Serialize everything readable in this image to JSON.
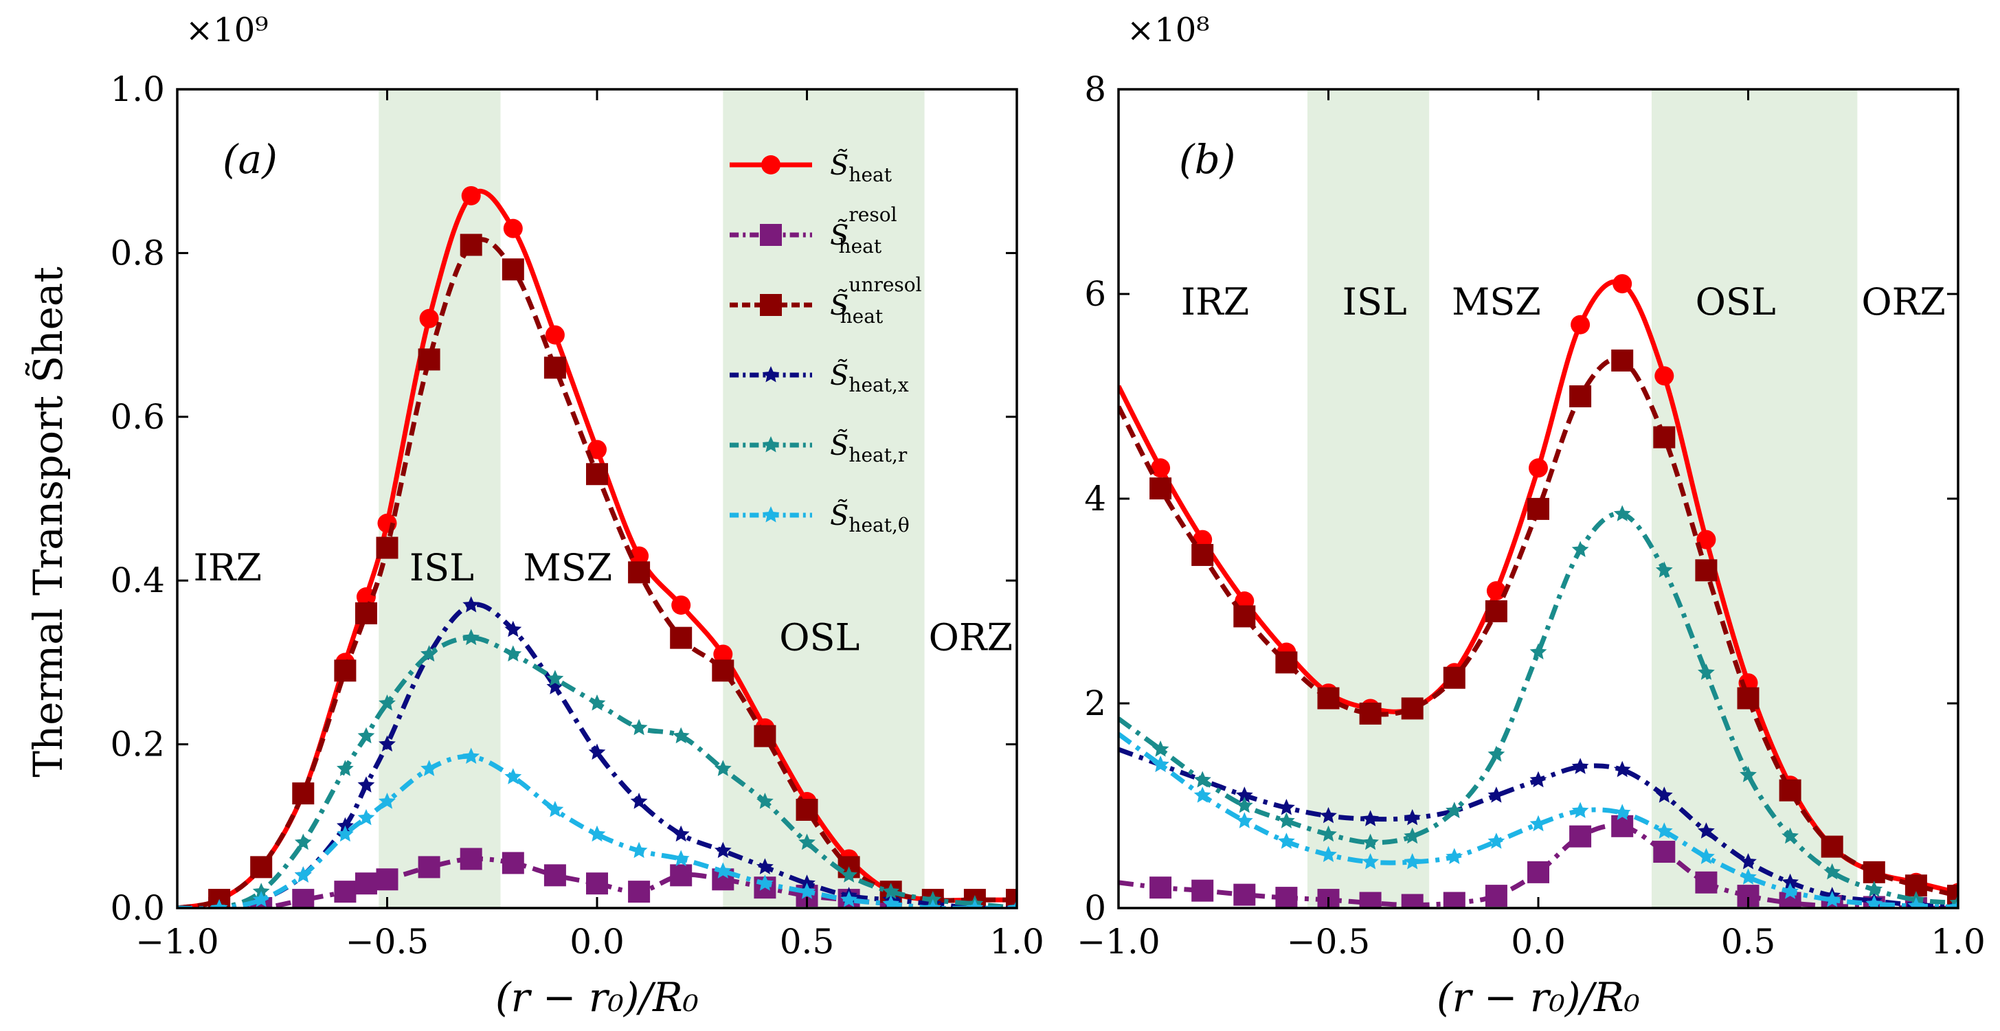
{
  "figure": {
    "ylabel": "Thermal Transport S̃heat"
  },
  "chart_data": [
    {
      "type": "line",
      "panel_label": "(a)",
      "exponent_label": "×10⁹",
      "xlabel": "(r − r₀)/R₀",
      "xlim": [
        -1.0,
        1.0
      ],
      "ylim": [
        0.0,
        1.0
      ],
      "x_ticks": [
        "−1.0",
        "−0.5",
        "0.0",
        "0.5",
        "1.0"
      ],
      "x_tick_values": [
        -1.0,
        -0.5,
        0.0,
        0.5,
        1.0
      ],
      "y_ticks": [
        "0.0",
        "0.2",
        "0.4",
        "0.6",
        "0.8",
        "1.0"
      ],
      "y_tick_values": [
        0.0,
        0.2,
        0.4,
        0.6,
        0.8,
        1.0
      ],
      "shaded_regions": [
        [
          -0.52,
          -0.23
        ],
        [
          0.3,
          0.78
        ]
      ],
      "region_labels": [
        {
          "text": "IRZ",
          "x": -0.88,
          "y": 0.4
        },
        {
          "text": "ISL",
          "x": -0.37,
          "y": 0.4
        },
        {
          "text": "MSZ",
          "x": -0.07,
          "y": 0.4
        },
        {
          "text": "OSL",
          "x": 0.53,
          "y": 0.315
        },
        {
          "text": "ORZ",
          "x": 0.89,
          "y": 0.315
        }
      ],
      "x": [
        -1.0,
        -0.9,
        -0.8,
        -0.7,
        -0.6,
        -0.55,
        -0.5,
        -0.4,
        -0.3,
        -0.2,
        -0.1,
        0.0,
        0.1,
        0.2,
        0.3,
        0.4,
        0.5,
        0.6,
        0.7,
        0.8,
        0.9,
        1.0
      ],
      "series": [
        {
          "name": "S̃heat",
          "label_base": "S̃",
          "label_sub": "heat",
          "label_sup": "",
          "color": "#ff0000",
          "dash": "",
          "marker": "circle",
          "values": [
            0.0,
            0.01,
            0.05,
            0.14,
            0.3,
            0.38,
            0.47,
            0.72,
            0.87,
            0.83,
            0.7,
            0.56,
            0.43,
            0.37,
            0.31,
            0.22,
            0.13,
            0.06,
            0.02,
            0.01,
            0.01,
            0.01
          ]
        },
        {
          "name": "S̃heat resol",
          "label_base": "S̃",
          "label_sub": "heat",
          "label_sup": "resol",
          "color": "#7b1a7b",
          "dash": "22,10,6,10",
          "marker": "square",
          "values": [
            0.0,
            0.0,
            0.0,
            0.01,
            0.02,
            0.03,
            0.035,
            0.05,
            0.06,
            0.055,
            0.04,
            0.03,
            0.02,
            0.04,
            0.035,
            0.025,
            0.015,
            0.01,
            0.005,
            0.0,
            0.0,
            0.0
          ]
        },
        {
          "name": "S̃heat unresol",
          "label_base": "S̃",
          "label_sub": "heat",
          "label_sup": "unresol",
          "color": "#8b0000",
          "dash": "20,10",
          "marker": "square",
          "values": [
            0.0,
            0.01,
            0.05,
            0.14,
            0.29,
            0.36,
            0.44,
            0.67,
            0.81,
            0.78,
            0.66,
            0.53,
            0.41,
            0.33,
            0.29,
            0.21,
            0.12,
            0.05,
            0.02,
            0.01,
            0.01,
            0.01
          ]
        },
        {
          "name": "S̃heat,x",
          "label_base": "S̃",
          "label_sub": "heat,x",
          "label_sup": "",
          "color": "#0a0a80",
          "dash": "22,10,6,10",
          "marker": "star",
          "values": [
            0.0,
            0.0,
            0.01,
            0.04,
            0.1,
            0.15,
            0.2,
            0.31,
            0.37,
            0.34,
            0.27,
            0.19,
            0.13,
            0.09,
            0.07,
            0.05,
            0.03,
            0.015,
            0.01,
            0.005,
            0.0,
            0.0
          ]
        },
        {
          "name": "S̃heat,r",
          "label_base": "S̃",
          "label_sub": "heat,r",
          "label_sup": "",
          "color": "#1a8c8c",
          "dash": "22,10,6,10",
          "marker": "star",
          "values": [
            0.0,
            0.0,
            0.02,
            0.08,
            0.17,
            0.21,
            0.25,
            0.31,
            0.33,
            0.31,
            0.28,
            0.25,
            0.22,
            0.21,
            0.17,
            0.13,
            0.08,
            0.04,
            0.02,
            0.01,
            0.005,
            0.0
          ]
        },
        {
          "name": "S̃heat,θ",
          "label_base": "S̃",
          "label_sub": "heat,θ",
          "label_sup": "",
          "color": "#1eb4e6",
          "dash": "22,10,6,10",
          "marker": "star",
          "values": [
            0.0,
            0.0,
            0.01,
            0.04,
            0.09,
            0.11,
            0.13,
            0.17,
            0.185,
            0.16,
            0.12,
            0.09,
            0.07,
            0.06,
            0.045,
            0.03,
            0.02,
            0.01,
            0.005,
            0.0,
            0.0,
            0.0
          ]
        }
      ]
    },
    {
      "type": "line",
      "panel_label": "(b)",
      "exponent_label": "×10⁸",
      "xlabel": "(r − r₀)/R₀",
      "xlim": [
        -1.0,
        1.0
      ],
      "ylim": [
        0.0,
        8.0
      ],
      "x_ticks": [
        "−1.0",
        "−0.5",
        "0.0",
        "0.5",
        "1.0"
      ],
      "x_tick_values": [
        -1.0,
        -0.5,
        0.0,
        0.5,
        1.0
      ],
      "y_ticks": [
        "0",
        "2",
        "4",
        "6",
        "8"
      ],
      "y_tick_values": [
        0,
        2,
        4,
        6,
        8
      ],
      "shaded_regions": [
        [
          -0.55,
          -0.26
        ],
        [
          0.27,
          0.76
        ]
      ],
      "region_labels": [
        {
          "text": "IRZ",
          "x": -0.77,
          "y": 5.8
        },
        {
          "text": "ISL",
          "x": -0.39,
          "y": 5.8
        },
        {
          "text": "MSZ",
          "x": -0.1,
          "y": 5.8
        },
        {
          "text": "OSL",
          "x": 0.47,
          "y": 5.8
        },
        {
          "text": "ORZ",
          "x": 0.87,
          "y": 5.8
        }
      ],
      "x": [
        -1.0,
        -0.9,
        -0.8,
        -0.7,
        -0.6,
        -0.5,
        -0.4,
        -0.3,
        -0.2,
        -0.1,
        0.0,
        0.1,
        0.2,
        0.3,
        0.4,
        0.5,
        0.6,
        0.7,
        0.8,
        0.9,
        1.0
      ],
      "series": [
        {
          "name": "S̃heat",
          "label_base": "S̃",
          "label_sub": "heat",
          "label_sup": "",
          "color": "#ff0000",
          "dash": "",
          "marker": "circle",
          "values": [
            5.1,
            4.3,
            3.6,
            3.0,
            2.5,
            2.1,
            1.95,
            1.95,
            2.3,
            3.1,
            4.3,
            5.7,
            6.1,
            5.2,
            3.6,
            2.2,
            1.2,
            0.6,
            0.35,
            0.25,
            0.15
          ]
        },
        {
          "name": "S̃heat resol",
          "label_base": "S̃",
          "label_sub": "heat",
          "label_sup": "resol",
          "color": "#7b1a7b",
          "dash": "22,10,6,10",
          "marker": "square",
          "values": [
            0.25,
            0.2,
            0.17,
            0.13,
            0.1,
            0.08,
            0.05,
            0.03,
            0.05,
            0.12,
            0.35,
            0.7,
            0.8,
            0.55,
            0.25,
            0.12,
            0.05,
            0.02,
            0.01,
            0.0,
            0.0
          ]
        },
        {
          "name": "S̃heat unresol",
          "label_base": "S̃",
          "label_sub": "heat",
          "label_sup": "unresol",
          "color": "#8b0000",
          "dash": "20,10",
          "marker": "square",
          "values": [
            4.9,
            4.1,
            3.45,
            2.85,
            2.4,
            2.05,
            1.9,
            1.95,
            2.25,
            2.9,
            3.9,
            5.0,
            5.35,
            4.6,
            3.3,
            2.05,
            1.15,
            0.6,
            0.35,
            0.22,
            0.12
          ]
        },
        {
          "name": "S̃heat,x",
          "label_base": "S̃",
          "label_sub": "heat,x",
          "label_sup": "",
          "color": "#0a0a80",
          "dash": "22,10,6,10",
          "marker": "star",
          "values": [
            1.55,
            1.4,
            1.25,
            1.1,
            0.98,
            0.9,
            0.87,
            0.88,
            0.95,
            1.1,
            1.25,
            1.38,
            1.35,
            1.1,
            0.75,
            0.45,
            0.25,
            0.12,
            0.07,
            0.03,
            0.02
          ]
        },
        {
          "name": "S̃heat,r",
          "label_base": "S̃",
          "label_sub": "heat,r",
          "label_sup": "",
          "color": "#1a8c8c",
          "dash": "22,10,6,10",
          "marker": "star",
          "values": [
            1.85,
            1.55,
            1.25,
            1.0,
            0.85,
            0.72,
            0.64,
            0.7,
            0.95,
            1.5,
            2.5,
            3.5,
            3.85,
            3.3,
            2.3,
            1.3,
            0.7,
            0.35,
            0.18,
            0.08,
            0.05
          ]
        },
        {
          "name": "S̃heat,θ",
          "label_base": "S̃",
          "label_sub": "heat,θ",
          "label_sup": "",
          "color": "#1eb4e6",
          "dash": "22,10,6,10",
          "marker": "star",
          "values": [
            1.7,
            1.4,
            1.1,
            0.85,
            0.65,
            0.52,
            0.45,
            0.45,
            0.5,
            0.65,
            0.82,
            0.95,
            0.93,
            0.75,
            0.5,
            0.3,
            0.16,
            0.08,
            0.04,
            0.02,
            0.01
          ]
        }
      ]
    }
  ]
}
